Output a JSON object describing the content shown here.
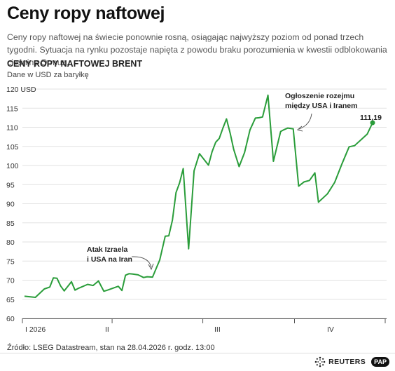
{
  "header": {
    "title": "Ceny ropy naftowej",
    "lead": "Ceny ropy naftowej na świecie ponownie rosną, osiągając najwyższy poziom od ponad trzech tygodni. Sytuacja na rynku pozostaje napięta z powodu braku porozumienia w kwestii odblokowania cieśniny Ormuz."
  },
  "chart_data": {
    "type": "line",
    "title": "CENY ROPY NAFTOWEJ BRENT",
    "subtitle": "Dane w USD za baryłkę",
    "y_ticks": [
      "120 USD",
      "115",
      "110",
      "105",
      "100",
      "95",
      "90",
      "85",
      "80",
      "75",
      "70",
      "65",
      "60"
    ],
    "ylim": [
      60,
      120
    ],
    "x_ticks": [
      "I 2026",
      "II",
      "III",
      "IV"
    ],
    "grid": true,
    "colors": {
      "line": "#2a9d3a",
      "grid": "#e2e2e2",
      "axis": "#555555"
    },
    "series": [
      {
        "x": [
          0,
          6,
          11,
          14,
          16,
          18,
          20,
          22,
          26,
          28,
          30,
          32,
          35,
          38,
          41,
          44,
          46,
          49,
          52,
          54,
          56,
          58,
          60,
          63,
          66,
          68,
          71,
          75,
          78,
          80,
          82,
          84,
          86,
          88,
          91,
          94,
          97,
          100,
          102,
          104,
          106,
          108,
          110,
          112,
          114,
          116,
          119,
          122,
          125,
          128,
          130,
          132,
          135,
          138,
          142,
          144,
          146,
          149,
          152,
          155,
          158,
          161
        ],
        "y": [
          65.8,
          65.5,
          67.7,
          68.2,
          70.6,
          70.5,
          68.5,
          67.2,
          69.6,
          67.4,
          67.9,
          68.3,
          68.9,
          68.6,
          69.8,
          67.1,
          67.4,
          67.9,
          68.4,
          67.3,
          71.3,
          71.7,
          71.6,
          71.4,
          70.7,
          70.9,
          70.8,
          75.3,
          81.5,
          81.6,
          85.7,
          92.9,
          95.5,
          99.2,
          78.2,
          98.6,
          103.1,
          101.3,
          100.1,
          103.6,
          106.1,
          107.1,
          109.8,
          112.2,
          108.5,
          104.2,
          99.7,
          103.4,
          109.3,
          112.4,
          112.5,
          112.7,
          118.4,
          101.1,
          108.9,
          109.4,
          109.8,
          109.6,
          94.6,
          95.7,
          96.1,
          98.1
        ],
        "note": "x = trading days since 1 Jan 2026"
      }
    ],
    "annotations": [
      {
        "lines": [
          "Atak Izraela",
          "i USA na Iran"
        ]
      },
      {
        "lines": [
          "Ogłoszenie rozejmu",
          "między USA i Iranem"
        ]
      },
      {
        "lines": [
          "111,19"
        ]
      }
    ]
  },
  "footer": {
    "source": "Źródło: LSEG Datastream, stan na 28.04.2026 r. godz. 13:00",
    "brand": "REUTERS",
    "pap": "PAP"
  }
}
